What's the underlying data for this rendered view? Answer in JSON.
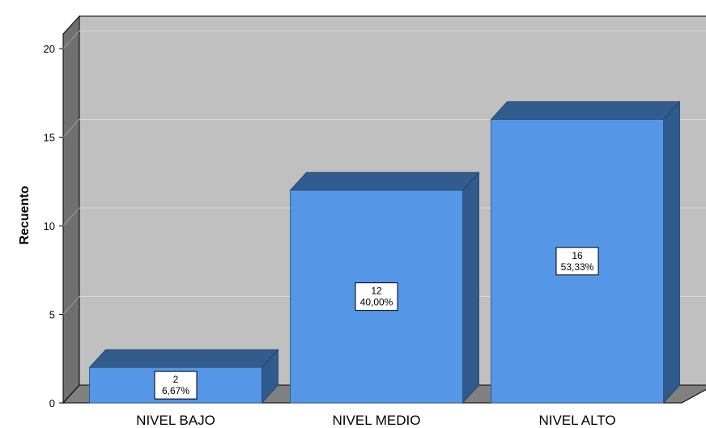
{
  "chart_data": {
    "type": "bar",
    "categories": [
      "NIVEL BAJO",
      "NIVEL MEDIO",
      "NIVEL ALTO"
    ],
    "values": [
      2,
      12,
      16
    ],
    "percent_labels": [
      "6,67%",
      "40,00%",
      "53,33%"
    ],
    "ylabel": "Recuento",
    "xlabel": "",
    "ylim": [
      0,
      20
    ],
    "yticks": [
      0,
      5,
      10,
      15,
      20
    ],
    "grid": true,
    "three_d": true,
    "colors": {
      "bar_front": "#5596E6",
      "bar_top": "#335C8E",
      "bar_side": "#2E5A8C",
      "background_wall": "#C0C0C0",
      "side_wall": "#707070",
      "floor": "#808080",
      "gridline": "#D8D8D8"
    }
  }
}
